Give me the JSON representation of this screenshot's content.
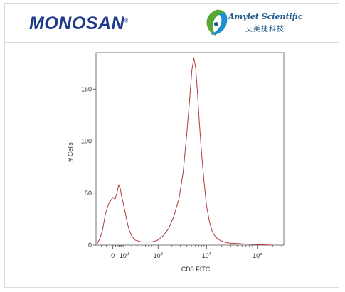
{
  "header": {
    "brand_left": "MONOSAN",
    "brand_left_mark": "®",
    "brand_right_name": "Amylet Scientific",
    "brand_right_sub": "艾美捷科技",
    "colors": {
      "monosan": "#1f3a8a",
      "amylet_blue": "#1e5a8c",
      "amylet_green": "#5aa832"
    }
  },
  "chart_data": {
    "type": "line",
    "title": "",
    "xlabel": "CD3 FITC",
    "ylabel": "# Cells",
    "x_scale": "logicle",
    "x_ticks": [
      {
        "value": 0,
        "label": "0"
      },
      {
        "value": 100,
        "label": "10",
        "sup": "2"
      },
      {
        "value": 1000,
        "label": "10",
        "sup": "3"
      },
      {
        "value": 10000,
        "label": "10",
        "sup": "4"
      },
      {
        "value": 100000,
        "label": "10",
        "sup": "5"
      }
    ],
    "y_ticks": [
      0,
      50,
      100,
      150
    ],
    "ylim": [
      0,
      185
    ],
    "grid": false,
    "line_color": "#b03a3a",
    "series": [
      {
        "x": [
          -150,
          -120,
          -90,
          -60,
          -30,
          0,
          15,
          30,
          45,
          60,
          75,
          90,
          110,
          130,
          160,
          200,
          250,
          320,
          400,
          500,
          650,
          800,
          1000,
          1300,
          1700,
          2200,
          2800,
          3400,
          4000,
          4600,
          5100,
          5600,
          6100,
          6600,
          7200,
          8000,
          9000,
          10000,
          11500,
          13000,
          15000,
          18000,
          22000,
          28000,
          40000,
          60000,
          100000,
          200000
        ],
        "y": [
          2,
          6,
          14,
          30,
          40,
          46,
          44,
          50,
          58,
          54,
          46,
          40,
          32,
          24,
          15,
          9,
          5,
          4,
          3,
          3,
          3,
          3.5,
          5,
          9,
          16,
          28,
          45,
          70,
          105,
          140,
          168,
          180,
          170,
          148,
          118,
          88,
          60,
          38,
          22,
          13,
          8,
          5,
          3,
          2,
          1.5,
          1,
          0.5,
          0
        ]
      }
    ]
  }
}
